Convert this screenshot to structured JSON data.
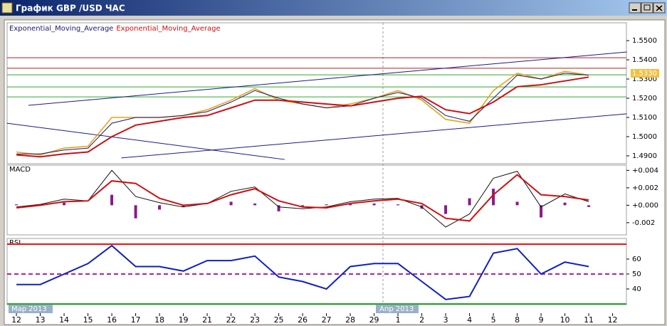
{
  "window": {
    "title": "График GBP /USD ЧАС",
    "period_labels": [
      "Мар 2013",
      "Апр 2013"
    ]
  },
  "chart_data": [
    {
      "type": "line",
      "title": null,
      "x": [
        0,
        1,
        2,
        3,
        4,
        5,
        6,
        7,
        8,
        9,
        10,
        11,
        12,
        13,
        14,
        15,
        16,
        17,
        18,
        19,
        20,
        21,
        22,
        23,
        24
      ],
      "xlim": [
        -0.39,
        25.58
      ],
      "ylim": [
        1.4859,
        1.5593
      ],
      "yticks": [
        {
          "value": 1.49,
          "label": "1.4900"
        },
        {
          "value": 1.5,
          "label": "1.5000"
        },
        {
          "value": 1.51,
          "label": "1.5100"
        },
        {
          "value": 1.52,
          "label": "1.5200"
        },
        {
          "value": 1.53,
          "label": "1.5300"
        },
        {
          "value": 1.54,
          "label": "1.5400"
        },
        {
          "value": 1.55,
          "label": "1.5500"
        }
      ],
      "series": [
        {
          "color": "#e8a317",
          "width": 1.6,
          "values": [
            1.492,
            1.4905,
            1.494,
            1.495,
            1.51,
            1.51,
            1.51,
            1.511,
            1.514,
            1.519,
            1.525,
            1.519,
            1.517,
            1.515,
            1.517,
            1.52,
            1.524,
            1.519,
            1.509,
            1.507,
            1.524,
            1.533,
            1.53,
            1.534,
            1.532
          ]
        },
        {
          "name": "Exponential_Moving_Average",
          "color": "#1a1a6e",
          "width": 1,
          "values": [
            1.491,
            1.491,
            1.493,
            1.494,
            1.507,
            1.51,
            1.51,
            1.511,
            1.513,
            1.518,
            1.524,
            1.52,
            1.517,
            1.515,
            1.516,
            1.52,
            1.523,
            1.52,
            1.511,
            1.508,
            1.52,
            1.532,
            1.53,
            1.533,
            1.532
          ]
        },
        {
          "name": "Exponential_Moving_Average",
          "color": "#cc1111",
          "width": 2,
          "values": [
            1.4905,
            1.4895,
            1.491,
            1.492,
            1.5,
            1.506,
            1.508,
            1.51,
            1.511,
            1.515,
            1.519,
            1.519,
            1.518,
            1.517,
            1.516,
            1.518,
            1.52,
            1.521,
            1.514,
            1.512,
            1.518,
            1.526,
            1.527,
            1.529,
            1.531
          ]
        }
      ],
      "levels": [
        {
          "value": 1.5411,
          "color": "#b22222"
        },
        {
          "value": 1.5356,
          "color": "#b22222"
        },
        {
          "value": 1.5322,
          "color": "#2eaa2e"
        },
        {
          "value": 1.5259,
          "color": "#2eaa2e"
        },
        {
          "value": 1.5207,
          "color": "#2eaa2e"
        }
      ],
      "trend_lines": [
        {
          "x": [
            0.5,
            25.6
          ],
          "values": [
            1.5163,
            1.5441
          ],
          "color": "#1a1a8e"
        },
        {
          "x": [
            4.4,
            25.6
          ],
          "values": [
            1.4889,
            1.5119
          ],
          "color": "#1a1a8e"
        },
        {
          "x": [
            -0.4,
            11.25
          ],
          "values": [
            1.507,
            1.4881
          ],
          "color": "#1a1a8e"
        }
      ],
      "last_price": {
        "value": 1.533,
        "label": "1.5330"
      }
    },
    {
      "type": "line",
      "title": "MACD",
      "x": [
        0,
        1,
        2,
        3,
        4,
        5,
        6,
        7,
        8,
        9,
        10,
        11,
        12,
        13,
        14,
        15,
        16,
        17,
        18,
        19,
        20,
        21,
        22,
        23,
        24
      ],
      "xlim": [
        -0.39,
        25.58
      ],
      "ylim": [
        -0.0034,
        0.0046
      ],
      "yticks": [
        {
          "value": 0.004,
          "label": "+0.004"
        },
        {
          "value": 0.002,
          "label": "+0.002"
        },
        {
          "value": 0,
          "label": "+0.000"
        },
        {
          "value": -0.002,
          "label": "-0.002"
        }
      ],
      "series": [
        {
          "style": "bar",
          "color": "#8b1a8b",
          "values": [
            0.0001,
            0.0001,
            0.0003,
            0,
            0.0012,
            -0.0015,
            -0.0005,
            -0.0002,
            0,
            0.0004,
            0.0002,
            -0.0007,
            -0.0002,
            0.0001,
            0.0002,
            0.0002,
            0.0001,
            -0.0004,
            -0.001,
            0.0008,
            0.0019,
            0.0004,
            -0.0014,
            0.0003,
            -0.0002
          ]
        },
        {
          "color": "#111111",
          "width": 1,
          "values": [
            -0.0002,
            0.0001,
            0.0007,
            0.0005,
            0.004,
            0.001,
            0.0003,
            -0.0002,
            0.0002,
            0.0016,
            0.0021,
            -0.0002,
            -0.0004,
            -0.0002,
            0.0004,
            0.0007,
            0.0008,
            -0.0002,
            -0.0025,
            -0.001,
            0.0031,
            0.0039,
            -0.0002,
            0.0013,
            0.0004
          ]
        },
        {
          "color": "#cc1111",
          "width": 2,
          "values": [
            -0.0003,
            0,
            0.0004,
            0.0005,
            0.0028,
            0.0025,
            0.0008,
            0,
            0.0002,
            0.0012,
            0.0019,
            0.0005,
            -0.0002,
            -0.0003,
            0.0002,
            0.0005,
            0.0007,
            0.0002,
            -0.0015,
            -0.0018,
            0.0012,
            0.0035,
            0.0012,
            0.001,
            0.0006
          ]
        }
      ]
    },
    {
      "type": "line",
      "title": "RSI",
      "x": [
        0,
        1,
        2,
        3,
        4,
        5,
        6,
        7,
        8,
        9,
        10,
        11,
        12,
        13,
        14,
        15,
        16,
        17,
        18,
        19,
        20,
        21,
        22,
        23,
        24
      ],
      "xlim": [
        -0.39,
        25.58
      ],
      "ylim": [
        29.5,
        73.8
      ],
      "yticks": [
        40,
        50,
        60
      ],
      "xticks": [
        {
          "value": 0,
          "label": "12"
        },
        {
          "value": 1,
          "label": "13"
        },
        {
          "value": 2,
          "label": "14"
        },
        {
          "value": 3,
          "label": "15"
        },
        {
          "value": 4,
          "label": "16"
        },
        {
          "value": 5,
          "label": "17"
        },
        {
          "value": 6,
          "label": "18"
        },
        {
          "value": 7,
          "label": "19"
        },
        {
          "value": 8,
          "label": "21"
        },
        {
          "value": 9,
          "label": "22"
        },
        {
          "value": 10,
          "label": "23"
        },
        {
          "value": 11,
          "label": "25"
        },
        {
          "value": 12,
          "label": "26"
        },
        {
          "value": 13,
          "label": "27"
        },
        {
          "value": 14,
          "label": "28"
        },
        {
          "value": 15,
          "label": "29"
        },
        {
          "value": 16,
          "label": "1"
        },
        {
          "value": 17,
          "label": "2"
        },
        {
          "value": 18,
          "label": "3"
        },
        {
          "value": 19,
          "label": "4"
        },
        {
          "value": 20,
          "label": "5"
        },
        {
          "value": 21,
          "label": "8"
        },
        {
          "value": 22,
          "label": "9"
        },
        {
          "value": 23,
          "label": "10"
        },
        {
          "value": 24,
          "label": "11"
        },
        {
          "value": 25,
          "label": "12"
        }
      ],
      "series": [
        {
          "color": "#1020c0",
          "width": 2,
          "values": [
            43,
            43,
            50,
            57,
            69,
            55,
            55,
            52,
            59,
            59,
            62,
            48,
            45,
            40,
            55,
            57,
            57,
            45,
            33,
            35,
            64,
            67,
            50,
            58,
            55
          ]
        }
      ],
      "levels": [
        {
          "value": 70,
          "color": "#ee1111"
        },
        {
          "value": 50,
          "color": "#aa22aa",
          "dashed": true
        },
        {
          "value": 30,
          "color": "#22aa22"
        }
      ]
    }
  ]
}
